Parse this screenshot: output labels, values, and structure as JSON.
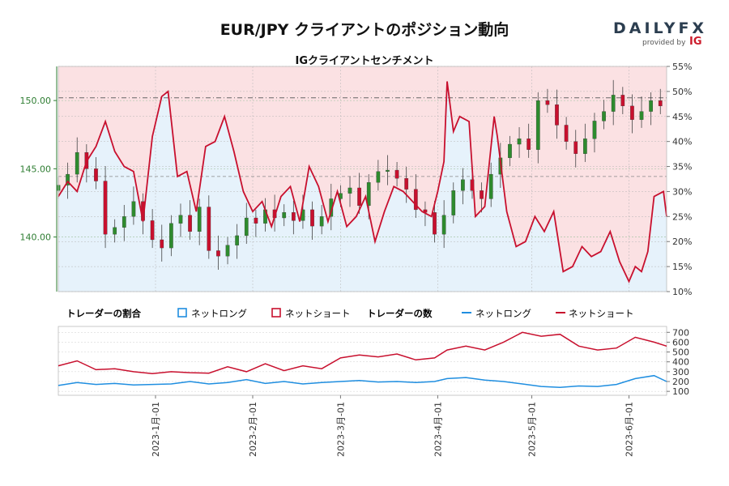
{
  "header": {
    "title": "EUR/JPY クライアントのポジション動向",
    "subtitle": "IGクライアントセンチメント",
    "logo_text": "DAILYFX",
    "logo_provided_by": "provided by",
    "logo_ig": "IG"
  },
  "legend": {
    "ratio_title": "トレーダーの割合",
    "ratio_long": "ネットロング",
    "ratio_short": "ネットショート",
    "count_title": "トレーダーの数",
    "count_long": "ネットロング",
    "count_short": "ネットショート"
  },
  "colors": {
    "long": "#1f8ee0",
    "short": "#c8102e",
    "long_fill": "#e6f2fb",
    "short_fill": "#fbe1e3",
    "candle_up": "#2e8b2e",
    "candle_down": "#c8102e",
    "price_axis": "#2e7d32"
  },
  "chart_data": [
    {
      "type": "line",
      "name": "price and sentiment",
      "x_axis": {
        "type": "date",
        "start": "2022-12-01",
        "end": "2023-06-13",
        "ticks": [
          "2023-1月-01",
          "2023-2月-01",
          "2023-3月-01",
          "2023-4月-01",
          "2023-5月-01",
          "2023-6月-01"
        ]
      },
      "y_left": {
        "ticks": [
          "140.00",
          "145.00",
          "150.00"
        ],
        "range": [
          136.0,
          152.5
        ]
      },
      "y_right": {
        "ticks": [
          "10%",
          "15%",
          "20%",
          "25%",
          "30%",
          "35%",
          "40%",
          "45%",
          "50%",
          "55%"
        ],
        "range": [
          10,
          55
        ]
      },
      "reference_price": 150.2,
      "reference_short_pct": 33.0,
      "candles_close": [
        [
          "2022-12-01",
          143.8
        ],
        [
          "2022-12-04",
          144.6
        ],
        [
          "2022-12-07",
          146.2
        ],
        [
          "2022-12-10",
          145.0
        ],
        [
          "2022-12-13",
          144.1
        ],
        [
          "2022-12-16",
          140.2
        ],
        [
          "2022-12-19",
          140.7
        ],
        [
          "2022-12-22",
          141.5
        ],
        [
          "2022-12-25",
          142.6
        ],
        [
          "2022-12-28",
          141.2
        ],
        [
          "2022-12-31",
          139.8
        ],
        [
          "2023-01-03",
          139.2
        ],
        [
          "2023-01-06",
          141.0
        ],
        [
          "2023-01-09",
          141.6
        ],
        [
          "2023-01-12",
          140.4
        ],
        [
          "2023-01-15",
          142.2
        ],
        [
          "2023-01-18",
          139.0
        ],
        [
          "2023-01-21",
          138.6
        ],
        [
          "2023-01-24",
          139.4
        ],
        [
          "2023-01-27",
          140.1
        ],
        [
          "2023-01-30",
          141.4
        ],
        [
          "2023-02-02",
          141.0
        ],
        [
          "2023-02-05",
          142.0
        ],
        [
          "2023-02-08",
          141.4
        ],
        [
          "2023-02-11",
          141.8
        ],
        [
          "2023-02-14",
          141.2
        ],
        [
          "2023-02-17",
          142.0
        ],
        [
          "2023-02-20",
          140.8
        ],
        [
          "2023-02-23",
          141.5
        ],
        [
          "2023-02-26",
          142.8
        ],
        [
          "2023-03-01",
          143.2
        ],
        [
          "2023-03-04",
          143.6
        ],
        [
          "2023-03-07",
          142.3
        ],
        [
          "2023-03-10",
          144.0
        ],
        [
          "2023-03-13",
          144.8
        ],
        [
          "2023-03-16",
          144.9
        ],
        [
          "2023-03-19",
          144.3
        ],
        [
          "2023-03-22",
          143.5
        ],
        [
          "2023-03-25",
          142.0
        ],
        [
          "2023-03-28",
          141.8
        ],
        [
          "2023-03-31",
          140.2
        ],
        [
          "2023-04-03",
          141.6
        ],
        [
          "2023-04-06",
          143.4
        ],
        [
          "2023-04-09",
          144.2
        ],
        [
          "2023-04-12",
          143.4
        ],
        [
          "2023-04-15",
          142.8
        ],
        [
          "2023-04-18",
          144.6
        ],
        [
          "2023-04-21",
          145.8
        ],
        [
          "2023-04-24",
          146.8
        ],
        [
          "2023-04-27",
          147.2
        ],
        [
          "2023-04-30",
          146.4
        ],
        [
          "2023-05-03",
          150.0
        ],
        [
          "2023-05-06",
          149.7
        ],
        [
          "2023-05-09",
          148.2
        ],
        [
          "2023-05-12",
          147.0
        ],
        [
          "2023-05-15",
          146.1
        ],
        [
          "2023-05-18",
          147.2
        ],
        [
          "2023-05-21",
          148.5
        ],
        [
          "2023-05-24",
          149.2
        ],
        [
          "2023-05-27",
          150.4
        ],
        [
          "2023-05-30",
          149.6
        ],
        [
          "2023-06-02",
          148.6
        ],
        [
          "2023-06-05",
          149.2
        ],
        [
          "2023-06-08",
          150.0
        ],
        [
          "2023-06-11",
          149.6
        ]
      ],
      "net_short_pct": [
        [
          "2022-12-01",
          29
        ],
        [
          "2022-12-04",
          32
        ],
        [
          "2022-12-07",
          30
        ],
        [
          "2022-12-10",
          36
        ],
        [
          "2022-12-13",
          39
        ],
        [
          "2022-12-16",
          44
        ],
        [
          "2022-12-19",
          38
        ],
        [
          "2022-12-22",
          35
        ],
        [
          "2022-12-25",
          34
        ],
        [
          "2022-12-28",
          24
        ],
        [
          "2022-12-31",
          41
        ],
        [
          "2023-01-03",
          49
        ],
        [
          "2023-01-05",
          50
        ],
        [
          "2023-01-08",
          33
        ],
        [
          "2023-01-11",
          34
        ],
        [
          "2023-01-14",
          26
        ],
        [
          "2023-01-17",
          39
        ],
        [
          "2023-01-20",
          40
        ],
        [
          "2023-01-23",
          45
        ],
        [
          "2023-01-26",
          38
        ],
        [
          "2023-01-29",
          30
        ],
        [
          "2023-02-01",
          26
        ],
        [
          "2023-02-04",
          28
        ],
        [
          "2023-02-07",
          23
        ],
        [
          "2023-02-10",
          29
        ],
        [
          "2023-02-13",
          31
        ],
        [
          "2023-02-16",
          24
        ],
        [
          "2023-02-19",
          35
        ],
        [
          "2023-02-22",
          31
        ],
        [
          "2023-02-25",
          24
        ],
        [
          "2023-02-28",
          30
        ],
        [
          "2023-03-03",
          23
        ],
        [
          "2023-03-06",
          25
        ],
        [
          "2023-03-09",
          29
        ],
        [
          "2023-03-12",
          20
        ],
        [
          "2023-03-15",
          26
        ],
        [
          "2023-03-18",
          31
        ],
        [
          "2023-03-21",
          30
        ],
        [
          "2023-03-24",
          28
        ],
        [
          "2023-03-27",
          26
        ],
        [
          "2023-03-30",
          25
        ],
        [
          "2023-04-01",
          30
        ],
        [
          "2023-04-03",
          36
        ],
        [
          "2023-04-04",
          52
        ],
        [
          "2023-04-06",
          42
        ],
        [
          "2023-04-08",
          45
        ],
        [
          "2023-04-11",
          44
        ],
        [
          "2023-04-13",
          25
        ],
        [
          "2023-04-16",
          27
        ],
        [
          "2023-04-19",
          45
        ],
        [
          "2023-04-20",
          41
        ],
        [
          "2023-04-23",
          26
        ],
        [
          "2023-04-26",
          19
        ],
        [
          "2023-04-29",
          20
        ],
        [
          "2023-05-02",
          25
        ],
        [
          "2023-05-05",
          22
        ],
        [
          "2023-05-08",
          26
        ],
        [
          "2023-05-11",
          14
        ],
        [
          "2023-05-14",
          15
        ],
        [
          "2023-05-17",
          19
        ],
        [
          "2023-05-20",
          17
        ],
        [
          "2023-05-23",
          18
        ],
        [
          "2023-05-26",
          22
        ],
        [
          "2023-05-29",
          16
        ],
        [
          "2023-06-01",
          12
        ],
        [
          "2023-06-03",
          15
        ],
        [
          "2023-06-05",
          14
        ],
        [
          "2023-06-07",
          18
        ],
        [
          "2023-06-09",
          29
        ],
        [
          "2023-06-12",
          30
        ],
        [
          "2023-06-13",
          25
        ]
      ]
    },
    {
      "type": "line",
      "name": "trader counts",
      "y_ticks": [
        "100",
        "200",
        "300",
        "400",
        "500",
        "600",
        "700"
      ],
      "y_range": [
        60,
        760
      ],
      "series": [
        {
          "name": "ネットロング",
          "values": [
            [
              "2022-12-01",
              160
            ],
            [
              "2022-12-07",
              190
            ],
            [
              "2022-12-13",
              170
            ],
            [
              "2022-12-19",
              180
            ],
            [
              "2022-12-25",
              165
            ],
            [
              "2022-12-31",
              170
            ],
            [
              "2023-01-06",
              175
            ],
            [
              "2023-01-12",
              200
            ],
            [
              "2023-01-18",
              175
            ],
            [
              "2023-01-24",
              190
            ],
            [
              "2023-01-30",
              220
            ],
            [
              "2023-02-05",
              180
            ],
            [
              "2023-02-11",
              200
            ],
            [
              "2023-02-17",
              175
            ],
            [
              "2023-02-23",
              190
            ],
            [
              "2023-03-01",
              200
            ],
            [
              "2023-03-07",
              210
            ],
            [
              "2023-03-13",
              195
            ],
            [
              "2023-03-19",
              200
            ],
            [
              "2023-03-25",
              190
            ],
            [
              "2023-03-31",
              200
            ],
            [
              "2023-04-04",
              230
            ],
            [
              "2023-04-10",
              240
            ],
            [
              "2023-04-16",
              215
            ],
            [
              "2023-04-22",
              200
            ],
            [
              "2023-04-28",
              175
            ],
            [
              "2023-05-04",
              150
            ],
            [
              "2023-05-10",
              140
            ],
            [
              "2023-05-16",
              155
            ],
            [
              "2023-05-22",
              150
            ],
            [
              "2023-05-28",
              170
            ],
            [
              "2023-06-03",
              230
            ],
            [
              "2023-06-09",
              260
            ],
            [
              "2023-06-13",
              200
            ]
          ]
        },
        {
          "name": "ネットショート",
          "values": [
            [
              "2022-12-01",
              360
            ],
            [
              "2022-12-07",
              410
            ],
            [
              "2022-12-13",
              320
            ],
            [
              "2022-12-19",
              330
            ],
            [
              "2022-12-25",
              300
            ],
            [
              "2022-12-31",
              280
            ],
            [
              "2023-01-06",
              300
            ],
            [
              "2023-01-12",
              290
            ],
            [
              "2023-01-18",
              285
            ],
            [
              "2023-01-24",
              350
            ],
            [
              "2023-01-30",
              300
            ],
            [
              "2023-02-05",
              380
            ],
            [
              "2023-02-11",
              310
            ],
            [
              "2023-02-17",
              360
            ],
            [
              "2023-02-23",
              330
            ],
            [
              "2023-03-01",
              440
            ],
            [
              "2023-03-07",
              470
            ],
            [
              "2023-03-13",
              450
            ],
            [
              "2023-03-19",
              480
            ],
            [
              "2023-03-25",
              420
            ],
            [
              "2023-03-31",
              440
            ],
            [
              "2023-04-04",
              520
            ],
            [
              "2023-04-10",
              560
            ],
            [
              "2023-04-16",
              520
            ],
            [
              "2023-04-22",
              600
            ],
            [
              "2023-04-28",
              700
            ],
            [
              "2023-05-04",
              660
            ],
            [
              "2023-05-10",
              680
            ],
            [
              "2023-05-16",
              560
            ],
            [
              "2023-05-22",
              520
            ],
            [
              "2023-05-28",
              540
            ],
            [
              "2023-06-03",
              650
            ],
            [
              "2023-06-09",
              600
            ],
            [
              "2023-06-13",
              560
            ]
          ]
        }
      ]
    }
  ]
}
